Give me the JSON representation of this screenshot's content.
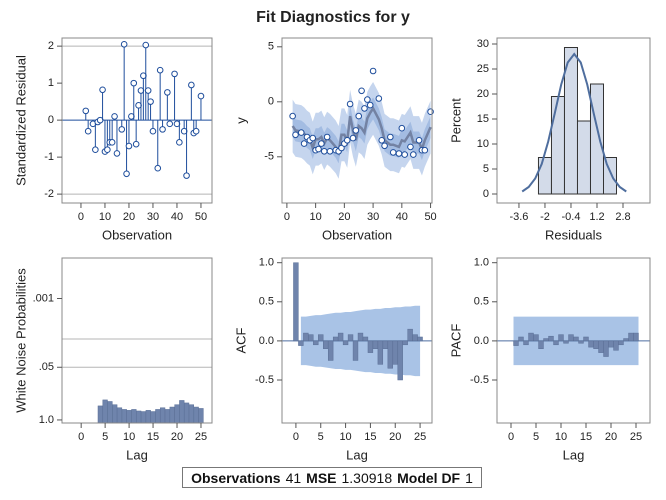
{
  "title": "Fit Diagnostics for y",
  "footer": {
    "items": [
      {
        "label": "Observations",
        "value": 41
      },
      {
        "label": "MSE",
        "value": 1.30918
      },
      {
        "label": "Model DF",
        "value": 1
      }
    ]
  },
  "chart_data": [
    {
      "type": "needle",
      "xlabel": "Observation",
      "ylabel": "Standardized Residual",
      "color": "#1f4e9c",
      "x": [
        2,
        3,
        5,
        6,
        7,
        8,
        9,
        10,
        11,
        12,
        13,
        14,
        15,
        17,
        18,
        19,
        20,
        21,
        22,
        23,
        24,
        25,
        26,
        27,
        28,
        29,
        30,
        32,
        33,
        34,
        36,
        37,
        39,
        40,
        41,
        43,
        44,
        46,
        47,
        48,
        50
      ],
      "values": [
        0.25,
        -0.3,
        -0.1,
        -0.8,
        -0.05,
        0.0,
        0.82,
        -0.85,
        -0.8,
        -0.6,
        -0.6,
        0.1,
        -0.9,
        -0.25,
        2.05,
        -1.45,
        -0.7,
        0.1,
        1.0,
        -0.65,
        0.4,
        0.8,
        1.2,
        2.03,
        0.8,
        0.5,
        -0.3,
        -1.3,
        1.35,
        -0.25,
        0.75,
        -0.1,
        1.25,
        -0.1,
        -0.6,
        -0.3,
        -1.5,
        0.95,
        -0.35,
        -0.3,
        0.65
      ],
      "xlim": [
        -7.9,
        54.6
      ],
      "ylim": [
        -2.24,
        2.22
      ],
      "xticks": [
        0,
        10,
        20,
        30,
        40,
        50
      ],
      "yticks": [
        -2,
        -1,
        0,
        1,
        2
      ],
      "reference_lines": [
        -2,
        2
      ]
    },
    {
      "type": "line",
      "xlabel": "Observation",
      "ylabel": "y",
      "color": "#1f4e9c",
      "line_color": "#7382a3",
      "x": [
        2,
        3,
        5,
        6,
        7,
        8,
        9,
        10,
        11,
        12,
        13,
        14,
        15,
        17,
        18,
        19,
        20,
        21,
        22,
        23,
        24,
        25,
        26,
        27,
        28,
        29,
        30,
        32,
        33,
        34,
        36,
        37,
        39,
        40,
        41,
        43,
        44,
        46,
        47,
        48,
        50
      ],
      "values": [
        -1.3,
        -3,
        -2.8,
        -3.8,
        -3.2,
        -3.5,
        -3.3,
        -4.4,
        -4.3,
        -3.8,
        -4.5,
        -3.2,
        -4.5,
        -4.4,
        -4.5,
        -4.2,
        -3.8,
        -3.5,
        -0.2,
        -3.3,
        -2.6,
        -1.3,
        1.0,
        -0.6,
        0.2,
        -0.3,
        2.8,
        0.3,
        -3.5,
        -4.0,
        -3.2,
        -4.6,
        -4.7,
        -2.4,
        -4.8,
        -4.1,
        -4.8,
        -3.5,
        -4.4,
        -4.4,
        -0.9
      ],
      "predicted": [
        -2.2,
        -2.6,
        -2.7,
        -2.9,
        -3.2,
        -3.4,
        -4.2,
        -3.4,
        -3.4,
        -3.2,
        -3.8,
        -3.3,
        -3.5,
        -4.1,
        -4.6,
        -3.0,
        -3.0,
        -3.6,
        -1.3,
        -2.6,
        -3.5,
        -2.2,
        -2.4,
        -2.8,
        -1.5,
        -1.0,
        -0.6,
        -1.6,
        -2.4,
        -3.5,
        -3.9,
        -3.9,
        -4.1,
        -3.5,
        -3.6,
        -2.8,
        -3.7,
        -3.7,
        -4.3,
        -3.5,
        -2.3
      ],
      "band_outer": {
        "color": "#c5d5ee",
        "lower": [
          -4.6,
          -5.0,
          -5.1,
          -5.3,
          -5.6,
          -5.8,
          -6.6,
          -5.8,
          -5.8,
          -5.6,
          -6.2,
          -5.7,
          -5.9,
          -6.5,
          -7.0,
          -5.4,
          -5.4,
          -6.0,
          -3.7,
          -5.0,
          -5.9,
          -4.6,
          -4.8,
          -5.2,
          -3.9,
          -3.4,
          -3.0,
          -4.0,
          -4.8,
          -5.9,
          -6.3,
          -6.3,
          -6.5,
          -5.9,
          -6.0,
          -5.2,
          -6.1,
          -6.1,
          -6.7,
          -5.9,
          -4.7
        ],
        "upper": [
          0.2,
          -0.2,
          -0.3,
          -0.5,
          -0.8,
          -1.0,
          -1.8,
          -1.0,
          -1.0,
          -0.8,
          -1.4,
          -0.9,
          -1.1,
          -1.7,
          -2.2,
          -0.6,
          -0.6,
          -1.2,
          1.1,
          -0.2,
          -1.1,
          0.2,
          0.0,
          -0.4,
          0.9,
          1.4,
          1.8,
          0.8,
          0.0,
          -1.1,
          -1.5,
          -1.5,
          -1.7,
          -1.1,
          -1.2,
          -0.4,
          -1.3,
          -1.3,
          -1.9,
          -1.1,
          0.1
        ]
      },
      "band_inner": {
        "color": "#a3bce2",
        "lower": [
          -3.2,
          -3.6,
          -3.7,
          -3.9,
          -4.2,
          -4.4,
          -5.2,
          -4.4,
          -4.4,
          -4.2,
          -4.8,
          -4.3,
          -4.5,
          -5.1,
          -5.6,
          -4.0,
          -4.0,
          -4.6,
          -2.3,
          -3.6,
          -4.5,
          -3.2,
          -3.4,
          -3.8,
          -2.5,
          -2.0,
          -1.6,
          -2.6,
          -3.4,
          -4.5,
          -4.9,
          -4.9,
          -5.1,
          -4.5,
          -4.6,
          -3.8,
          -4.7,
          -4.7,
          -5.3,
          -4.5,
          -3.3
        ],
        "upper": [
          -1.2,
          -1.6,
          -1.7,
          -1.9,
          -2.2,
          -2.4,
          -3.2,
          -2.4,
          -2.4,
          -2.2,
          -2.8,
          -2.3,
          -2.5,
          -3.1,
          -3.6,
          -2.0,
          -2.0,
          -2.6,
          -0.3,
          -1.6,
          -2.5,
          -1.2,
          -1.4,
          -1.8,
          -0.5,
          0.0,
          0.4,
          -0.6,
          -1.4,
          -2.5,
          -2.9,
          -2.9,
          -3.1,
          -2.5,
          -2.6,
          -1.8,
          -2.7,
          -2.7,
          -3.3,
          -2.5,
          -1.3
        ]
      },
      "xlim": [
        -1.7,
        50.5
      ],
      "ylim": [
        -9.2,
        5.8
      ],
      "xticks": [
        0,
        10,
        20,
        30,
        40,
        50
      ],
      "yticks": [
        -5,
        0,
        5
      ]
    },
    {
      "type": "histogram",
      "xlabel": "Residuals",
      "ylabel": "Percent",
      "color": "#d3dbe9",
      "line_color": "#4f6e9e",
      "bins": [
        -2.4,
        -1.6,
        -0.8,
        0,
        0.8,
        1.6,
        2.4
      ],
      "values": [
        7.3,
        19.5,
        29.3,
        14.6,
        22.0,
        7.3
      ],
      "density": {
        "x": [
          -3.4,
          -3.0,
          -2.6,
          -2.2,
          -1.8,
          -1.4,
          -1.0,
          -0.6,
          -0.2,
          0.2,
          0.6,
          1.0,
          1.4,
          1.8,
          2.2,
          2.6,
          3.0
        ],
        "values": [
          0.5,
          1.4,
          3.1,
          6.0,
          10.5,
          16.1,
          21.9,
          26.3,
          28,
          26.3,
          21.9,
          16.1,
          10.5,
          6.0,
          3.1,
          1.4,
          0.5
        ]
      },
      "xlim": [
        -4.95,
        4.46
      ],
      "ylim": [
        -1.8,
        31.2
      ],
      "xticks": [
        -3.6,
        -2,
        -0.4,
        1.2,
        2.8
      ],
      "yticks": [
        0,
        5,
        10,
        15,
        20,
        25,
        30
      ]
    },
    {
      "type": "bar",
      "xlabel": "Lag",
      "ylabel": "White Noise Probabilities",
      "color": "#6f84ac",
      "log_scale": true,
      "x": [
        4,
        5,
        6,
        7,
        8,
        9,
        10,
        11,
        12,
        13,
        14,
        15,
        16,
        17,
        18,
        19,
        20,
        21,
        22,
        23,
        24,
        25
      ],
      "values": [
        0.45,
        0.32,
        0.35,
        0.42,
        0.5,
        0.55,
        0.58,
        0.55,
        0.6,
        0.62,
        0.58,
        0.62,
        0.55,
        0.5,
        0.55,
        0.48,
        0.42,
        0.33,
        0.38,
        0.42,
        0.48,
        0.52
      ],
      "xlim": [
        -4,
        27.3
      ],
      "ylim": [
        1.19,
        0.0001
      ],
      "xticks": [
        0,
        5,
        10,
        15,
        20,
        25
      ],
      "yticks": [
        {
          "value": 0.001,
          "label": ".001"
        },
        {
          "value": 0.05,
          "label": ".05"
        },
        {
          "value": 1,
          "label": "1.0"
        }
      ],
      "reference_lines": [
        0.01,
        0.05
      ]
    },
    {
      "type": "bar",
      "xlabel": "Lag",
      "ylabel": "ACF",
      "color": "#6f84ac",
      "x": [
        0,
        1,
        2,
        3,
        4,
        5,
        6,
        7,
        8,
        9,
        10,
        11,
        12,
        13,
        14,
        15,
        16,
        17,
        18,
        19,
        20,
        21,
        22,
        23,
        24,
        25
      ],
      "values": [
        1.0,
        -0.06,
        0.1,
        0.08,
        -0.05,
        0.08,
        -0.1,
        -0.25,
        0.05,
        0.1,
        -0.05,
        0.08,
        -0.25,
        0.1,
        0.05,
        -0.15,
        -0.1,
        -0.3,
        -0.1,
        -0.35,
        -0.3,
        -0.5,
        -0.05,
        0.15,
        0.08,
        0.05
      ],
      "band": {
        "color": "#a9c3e6",
        "x": [
          1,
          2,
          3,
          4,
          5,
          6,
          7,
          8,
          9,
          10,
          11,
          12,
          13,
          14,
          15,
          16,
          17,
          18,
          19,
          20,
          21,
          22,
          23,
          24,
          25
        ],
        "upper": [
          0.31,
          0.31,
          0.32,
          0.33,
          0.33,
          0.34,
          0.35,
          0.36,
          0.36,
          0.37,
          0.37,
          0.38,
          0.39,
          0.4,
          0.4,
          0.41,
          0.41,
          0.42,
          0.42,
          0.43,
          0.43,
          0.44,
          0.44,
          0.45,
          0.45
        ],
        "lower": [
          -0.31,
          -0.31,
          -0.32,
          -0.33,
          -0.33,
          -0.34,
          -0.35,
          -0.36,
          -0.36,
          -0.37,
          -0.37,
          -0.38,
          -0.39,
          -0.4,
          -0.4,
          -0.41,
          -0.41,
          -0.42,
          -0.42,
          -0.43,
          -0.43,
          -0.44,
          -0.44,
          -0.45,
          -0.45
        ]
      },
      "xlim": [
        -2.8,
        27.4
      ],
      "ylim": [
        -1.05,
        1.06
      ],
      "xticks": [
        0,
        5,
        10,
        15,
        20,
        25
      ],
      "yticks": [
        -0.5,
        {
          "value": 0,
          "label": "0.0"
        },
        0.5,
        {
          "value": 1,
          "label": "1.0"
        }
      ]
    },
    {
      "type": "bar",
      "xlabel": "Lag",
      "ylabel": "PACF",
      "color": "#6f84ac",
      "x": [
        1,
        2,
        3,
        4,
        5,
        6,
        7,
        8,
        9,
        10,
        11,
        12,
        13,
        14,
        15,
        16,
        17,
        18,
        19,
        20,
        21,
        22,
        23,
        24,
        25
      ],
      "values": [
        -0.06,
        0.05,
        -0.05,
        0.1,
        0.08,
        -0.1,
        0.03,
        0.06,
        -0.05,
        0.08,
        -0.03,
        0.08,
        0.05,
        -0.03,
        0.05,
        -0.08,
        -0.1,
        -0.15,
        -0.2,
        -0.08,
        -0.12,
        -0.05,
        0.03,
        0.1,
        0.1
      ],
      "band": {
        "color": "#a9c3e6",
        "x": [
          1,
          25
        ],
        "upper": [
          0.31,
          0.31
        ],
        "lower": [
          -0.31,
          -0.31
        ]
      },
      "xlim": [
        -2.8,
        27.8
      ],
      "ylim": [
        -1.05,
        1.06
      ],
      "xticks": [
        0,
        5,
        10,
        15,
        20,
        25
      ],
      "yticks": [
        -0.5,
        {
          "value": 0,
          "label": "0.0"
        },
        0.5,
        {
          "value": 1,
          "label": "1.0"
        }
      ]
    }
  ]
}
